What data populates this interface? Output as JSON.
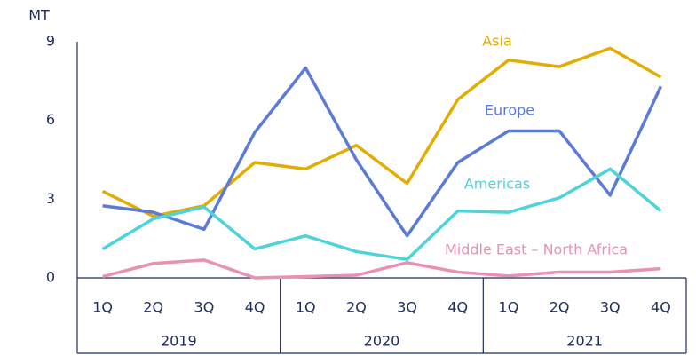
{
  "chart_data": {
    "type": "line",
    "y_axis_label": "MT",
    "categories": [
      "1Q",
      "2Q",
      "3Q",
      "4Q",
      "1Q",
      "2Q",
      "3Q",
      "4Q",
      "1Q",
      "2Q",
      "3Q",
      "4Q"
    ],
    "groups": [
      "2019",
      "2020",
      "2021"
    ],
    "ylim": [
      0,
      9
    ],
    "yticks": [
      0,
      3,
      6,
      9
    ],
    "series": [
      {
        "name": "Asia",
        "color": "#e2ad00",
        "values": [
          3.3,
          2.35,
          2.75,
          4.4,
          4.15,
          5.05,
          3.6,
          6.8,
          8.3,
          8.05,
          8.75,
          7.65
        ]
      },
      {
        "name": "Europe",
        "color": "#5b7bd5",
        "values": [
          2.75,
          2.5,
          1.85,
          5.55,
          8.0,
          4.5,
          1.6,
          4.4,
          5.6,
          5.6,
          3.15,
          7.3
        ]
      },
      {
        "name": "Americas",
        "color": "#4dd3d8",
        "values": [
          1.1,
          2.25,
          2.7,
          1.1,
          1.6,
          1.0,
          0.7,
          2.55,
          2.5,
          3.05,
          4.15,
          2.55
        ]
      },
      {
        "name": "Middle East – North Africa",
        "color": "#e891b5",
        "values": [
          0.05,
          0.55,
          0.68,
          0,
          0.05,
          0.1,
          0.58,
          0.22,
          0.07,
          0.22,
          0.22,
          0.35
        ]
      }
    ]
  }
}
